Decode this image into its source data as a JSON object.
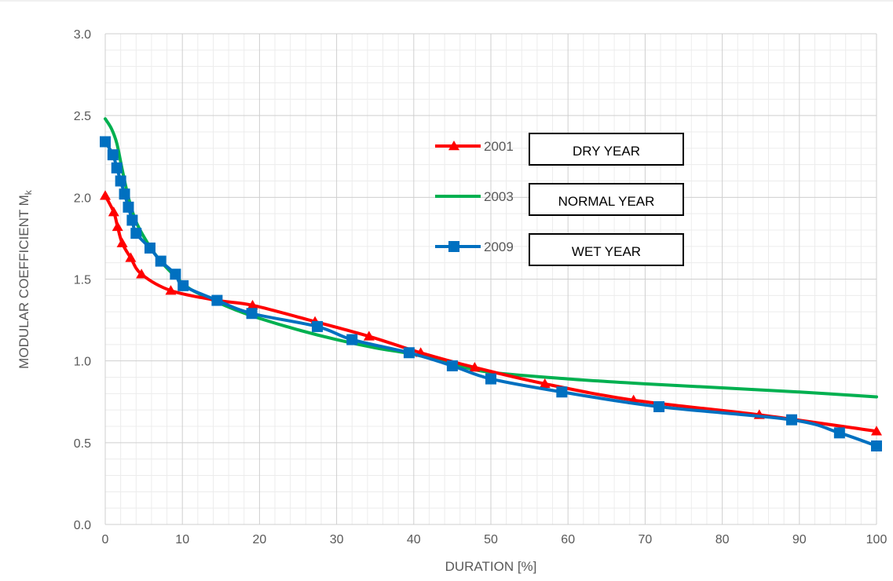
{
  "chart_data": {
    "type": "line",
    "title": "",
    "xlabel": "DURATION [%]",
    "ylabel": {
      "main": "MODULAR COEFFICIENT M",
      "subscript": "k"
    },
    "xlim": [
      0,
      100
    ],
    "ylim": [
      0,
      3
    ],
    "x_major_ticks": [
      "0",
      "10",
      "20",
      "30",
      "40",
      "50",
      "60",
      "70",
      "80",
      "90",
      "100"
    ],
    "y_major_ticks": [
      "0.0",
      "0.5",
      "1.0",
      "1.5",
      "2.0",
      "2.5",
      "3.0"
    ],
    "grid": {
      "major": true,
      "minor": true,
      "x_minor_step": 2,
      "y_minor_step": 0.1
    },
    "legend_placement": "upper-middle",
    "series": [
      {
        "name": "2001",
        "color": "#FF0000",
        "marker": "triangle",
        "annotation": "DRY YEAR",
        "show_markers": true,
        "points": [
          [
            0,
            2.01
          ],
          [
            1.1,
            1.91
          ],
          [
            1.6,
            1.82
          ],
          [
            2.2,
            1.72
          ],
          [
            3.3,
            1.63
          ],
          [
            4.7,
            1.53
          ],
          [
            8.5,
            1.43
          ],
          [
            14.5,
            1.37
          ],
          [
            19.1,
            1.34
          ],
          [
            27.2,
            1.24
          ],
          [
            34.2,
            1.15
          ],
          [
            40.9,
            1.05
          ],
          [
            47.9,
            0.96
          ],
          [
            57.0,
            0.86
          ],
          [
            68.5,
            0.76
          ],
          [
            84.8,
            0.67
          ],
          [
            100,
            0.57
          ]
        ]
      },
      {
        "name": "2003",
        "color": "#00B050",
        "marker": "none",
        "annotation": "NORMAL YEAR",
        "show_markers": false,
        "points": [
          [
            0,
            2.48
          ],
          [
            0.8,
            2.42
          ],
          [
            1.5,
            2.33
          ],
          [
            2.2,
            2.17
          ],
          [
            3.0,
            2.0
          ],
          [
            4.0,
            1.85
          ],
          [
            5.5,
            1.72
          ],
          [
            7.0,
            1.62
          ],
          [
            9.0,
            1.52
          ],
          [
            11.0,
            1.44
          ],
          [
            14.0,
            1.37
          ],
          [
            17.0,
            1.31
          ],
          [
            20.0,
            1.26
          ],
          [
            25.0,
            1.19
          ],
          [
            30.0,
            1.13
          ],
          [
            35.0,
            1.08
          ],
          [
            40.0,
            1.04
          ],
          [
            45.0,
            0.98
          ],
          [
            50.0,
            0.93
          ],
          [
            60.0,
            0.89
          ],
          [
            70.0,
            0.86
          ],
          [
            80.0,
            0.835
          ],
          [
            90.0,
            0.81
          ],
          [
            100,
            0.78
          ]
        ]
      },
      {
        "name": "2009",
        "color": "#0070C0",
        "marker": "square",
        "annotation": "WET YEAR",
        "show_markers": true,
        "points": [
          [
            0,
            2.34
          ],
          [
            1.0,
            2.26
          ],
          [
            1.5,
            2.18
          ],
          [
            2.0,
            2.1
          ],
          [
            2.5,
            2.02
          ],
          [
            3.0,
            1.94
          ],
          [
            3.5,
            1.86
          ],
          [
            4.0,
            1.78
          ],
          [
            5.8,
            1.69
          ],
          [
            7.2,
            1.61
          ],
          [
            9.1,
            1.53
          ],
          [
            10.1,
            1.46
          ],
          [
            14.5,
            1.37
          ],
          [
            19.0,
            1.29
          ],
          [
            27.5,
            1.21
          ],
          [
            32.0,
            1.13
          ],
          [
            39.4,
            1.05
          ],
          [
            45.0,
            0.97
          ],
          [
            50.0,
            0.89
          ],
          [
            59.2,
            0.81
          ],
          [
            71.8,
            0.72
          ],
          [
            89.0,
            0.64
          ],
          [
            95.2,
            0.56
          ],
          [
            100,
            0.48
          ]
        ]
      }
    ]
  }
}
